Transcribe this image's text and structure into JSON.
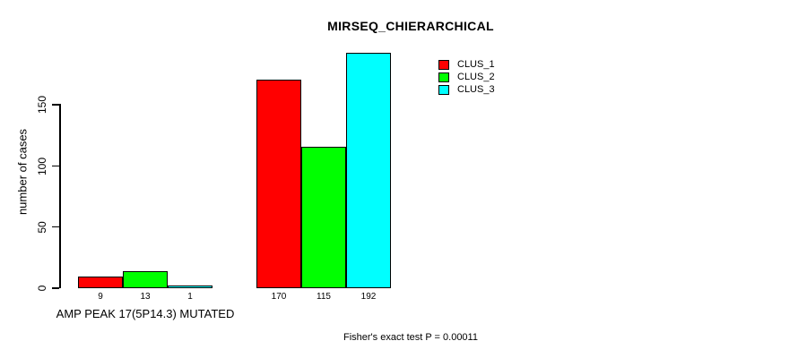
{
  "header": {
    "title": "MIRSEQ_CHIERARCHICAL"
  },
  "chart_data": {
    "type": "bar",
    "title": "MIRSEQ_CHIERARCHICAL",
    "xlabel": "",
    "ylabel": "number of cases",
    "yticks": [
      0,
      50,
      100,
      150
    ],
    "ylim": [
      0,
      195
    ],
    "grid": false,
    "legend_position": "top-right",
    "categories": [
      "AMP PEAK 17(5P14.3) MUTATED",
      ""
    ],
    "series": [
      {
        "name": "CLUS_1",
        "color": "#FF0000",
        "values": [
          9,
          170
        ]
      },
      {
        "name": "CLUS_2",
        "color": "#00FF00",
        "values": [
          13,
          115
        ]
      },
      {
        "name": "CLUS_3",
        "color": "#00FFFF",
        "values": [
          1,
          192
        ]
      }
    ],
    "bar_value_labels": [
      [
        "9",
        "13",
        "1"
      ],
      [
        "170",
        "115",
        "192"
      ]
    ],
    "annotation": "Fisher's exact test P = 0.00011"
  },
  "colors": {
    "background": "#FFFFFF",
    "axis": "#000000",
    "bar_border": "#000000",
    "clus_1": "#FF0000",
    "clus_2": "#00FF00",
    "clus_3": "#00FFFF"
  }
}
